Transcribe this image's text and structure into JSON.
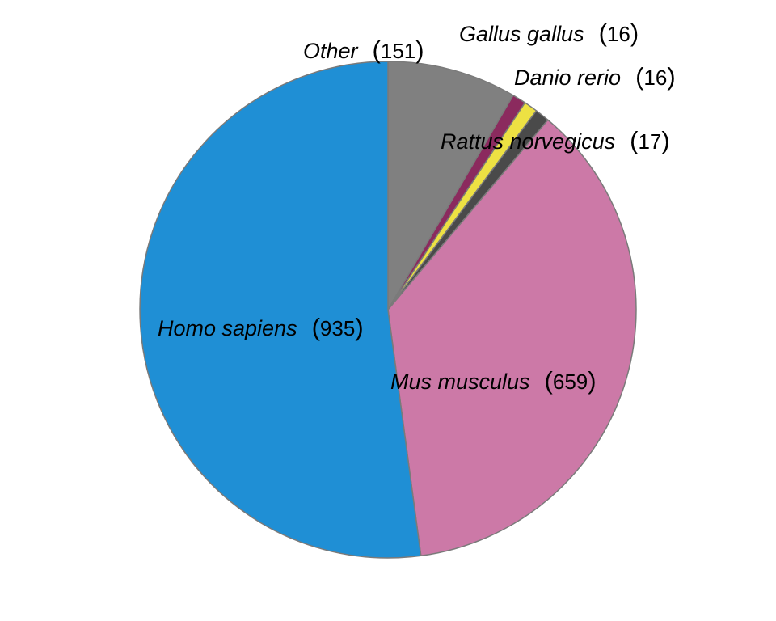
{
  "chart_data": {
    "type": "pie",
    "title": "",
    "slices": [
      {
        "name": "Other",
        "value": 151,
        "color": "#808080"
      },
      {
        "name": "Gallus gallus",
        "value": 16,
        "color": "#8b2a5e"
      },
      {
        "name": "Danio rerio",
        "value": 16,
        "color": "#ede143"
      },
      {
        "name": "Rattus norvegicus",
        "value": 17,
        "color": "#4a4a4a"
      },
      {
        "name": "Mus musculus",
        "value": 659,
        "color": "#cc79a7"
      },
      {
        "name": "Homo sapiens",
        "value": 935,
        "color": "#1f8fd5"
      }
    ],
    "start_angle": "12 o'clock",
    "direction": "clockwise",
    "slice_border_color": "#7a7a7a",
    "legend": "none",
    "labels": "inline, species name in italics followed by count in parentheses"
  }
}
